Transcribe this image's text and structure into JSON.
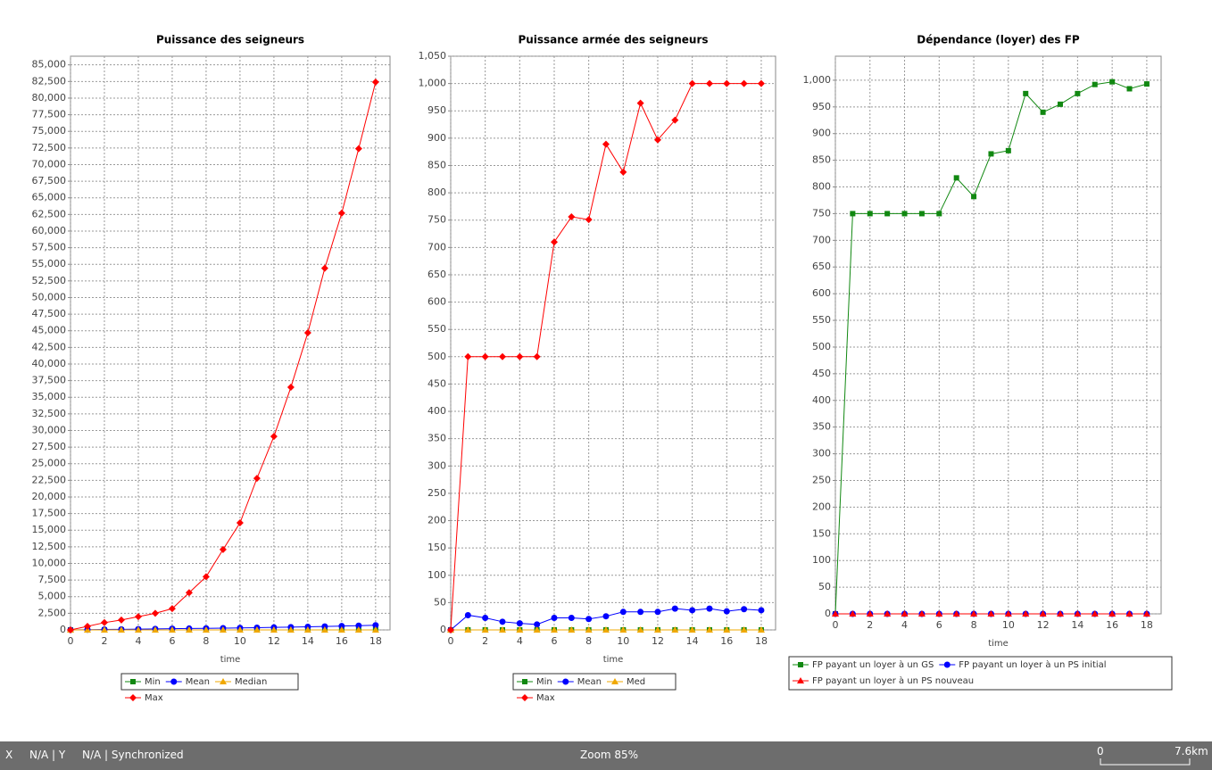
{
  "chart_data": [
    {
      "type": "line",
      "title": "Puissance des seigneurs",
      "xlabel": "time",
      "x": [
        0,
        1,
        2,
        3,
        4,
        5,
        6,
        7,
        8,
        9,
        10,
        11,
        12,
        13,
        14,
        15,
        16,
        17,
        18
      ],
      "xlim": [
        0,
        18.85
      ],
      "xticks": [
        0,
        2,
        4,
        6,
        8,
        10,
        12,
        14,
        16,
        18
      ],
      "ylim": [
        0,
        86300
      ],
      "yticks": [
        0,
        {
          "value": 2500,
          "label": "2,500"
        },
        {
          "value": 5000,
          "label": "5,000"
        },
        {
          "value": 7500,
          "label": "7,500"
        },
        {
          "value": 10000,
          "label": "10,000"
        },
        {
          "value": 12500,
          "label": "12,500"
        },
        {
          "value": 15000,
          "label": "15,000"
        },
        {
          "value": 17500,
          "label": "17,500"
        },
        {
          "value": 20000,
          "label": "20,000"
        },
        {
          "value": 22500,
          "label": "22,500"
        },
        {
          "value": 25000,
          "label": "25,000"
        },
        {
          "value": 27500,
          "label": "27,500"
        },
        {
          "value": 30000,
          "label": "30,000"
        },
        {
          "value": 32500,
          "label": "32,500"
        },
        {
          "value": 35000,
          "label": "35,000"
        },
        {
          "value": 37500,
          "label": "37,500"
        },
        {
          "value": 40000,
          "label": "40,000"
        },
        {
          "value": 42500,
          "label": "42,500"
        },
        {
          "value": 45000,
          "label": "45,000"
        },
        {
          "value": 47500,
          "label": "47,500"
        },
        {
          "value": 50000,
          "label": "50,000"
        },
        {
          "value": 52500,
          "label": "52,500"
        },
        {
          "value": 55000,
          "label": "55,000"
        },
        {
          "value": 57500,
          "label": "57,500"
        },
        {
          "value": 60000,
          "label": "60,000"
        },
        {
          "value": 62500,
          "label": "62,500"
        },
        {
          "value": 65000,
          "label": "65,000"
        },
        {
          "value": 67500,
          "label": "67,500"
        },
        {
          "value": 70000,
          "label": "70,000"
        },
        {
          "value": 72500,
          "label": "72,500"
        },
        {
          "value": 75000,
          "label": "75,000"
        },
        {
          "value": 77500,
          "label": "77,500"
        },
        {
          "value": 80000,
          "label": "80,000"
        },
        {
          "value": 82500,
          "label": "82,500"
        },
        {
          "value": 85000,
          "label": "85,000"
        }
      ],
      "grid": true,
      "series": [
        {
          "name": "Min",
          "color": "#118811",
          "marker": "square",
          "values": [
            0,
            0,
            0,
            0,
            0,
            0,
            0,
            0,
            0,
            0,
            0,
            0,
            0,
            0,
            0,
            0,
            0,
            0,
            0
          ]
        },
        {
          "name": "Mean",
          "color": "#0000ff",
          "marker": "circle",
          "values": [
            0,
            30,
            60,
            90,
            120,
            150,
            180,
            210,
            240,
            270,
            300,
            340,
            380,
            420,
            470,
            520,
            580,
            640,
            700
          ]
        },
        {
          "name": "Median",
          "color": "#f0a800",
          "marker": "triangle",
          "values": [
            0,
            0,
            0,
            0,
            0,
            0,
            0,
            0,
            0,
            0,
            0,
            0,
            0,
            0,
            0,
            0,
            0,
            0,
            0
          ]
        },
        {
          "name": "Max",
          "color": "#ff0000",
          "marker": "diamond",
          "values": [
            0,
            537,
            1100,
            1500,
            2000,
            2500,
            3200,
            5600,
            8000,
            12100,
            16100,
            22800,
            29100,
            36500,
            44700,
            54400,
            62700,
            72400,
            82400
          ]
        }
      ]
    },
    {
      "type": "line",
      "title": "Puissance armée des seigneurs",
      "xlabel": "time",
      "x": [
        0,
        1,
        2,
        3,
        4,
        5,
        6,
        7,
        8,
        9,
        10,
        11,
        12,
        13,
        14,
        15,
        16,
        17,
        18
      ],
      "xlim": [
        0,
        18.83
      ],
      "xticks": [
        0,
        2,
        4,
        6,
        8,
        10,
        12,
        14,
        16,
        18
      ],
      "ylim": [
        0,
        1050
      ],
      "yticks": [
        0,
        50,
        100,
        150,
        200,
        250,
        300,
        350,
        400,
        450,
        500,
        550,
        600,
        650,
        700,
        750,
        800,
        850,
        900,
        950,
        {
          "value": 1000,
          "label": "1,000"
        },
        {
          "value": 1050,
          "label": "1,050"
        }
      ],
      "grid": true,
      "series": [
        {
          "name": "Min",
          "color": "#118811",
          "marker": "square",
          "values": [
            0,
            0,
            0,
            0,
            0,
            0,
            0,
            0,
            0,
            0,
            0,
            0,
            0,
            0,
            0,
            0,
            0,
            0,
            0
          ]
        },
        {
          "name": "Mean",
          "color": "#0000ff",
          "marker": "circle",
          "values": [
            0,
            27,
            22,
            15,
            12,
            10,
            22,
            22,
            20,
            25,
            33,
            33,
            33,
            39,
            36,
            39,
            34,
            38,
            36
          ]
        },
        {
          "name": "Med",
          "color": "#f0a800",
          "marker": "triangle",
          "values": [
            0,
            0,
            0,
            0,
            0,
            0,
            0,
            0,
            0,
            0,
            0,
            0,
            0,
            0,
            0,
            0,
            0,
            0,
            0
          ]
        },
        {
          "name": "Max",
          "color": "#ff0000",
          "marker": "diamond",
          "values": [
            0,
            500,
            500,
            500,
            500,
            500,
            710,
            756,
            751,
            889,
            838,
            964,
            897,
            933,
            1000,
            1000,
            1000,
            1000,
            1000
          ]
        }
      ]
    },
    {
      "type": "line",
      "title": "Dépendance (loyer) des FP",
      "xlabel": "time",
      "x": [
        0,
        1,
        2,
        3,
        4,
        5,
        6,
        7,
        8,
        9,
        10,
        11,
        12,
        13,
        14,
        15,
        16,
        17,
        18
      ],
      "xlim": [
        0,
        18.83
      ],
      "xticks": [
        0,
        2,
        4,
        6,
        8,
        10,
        12,
        14,
        16,
        18
      ],
      "ylim": [
        0,
        1045
      ],
      "yticks": [
        0,
        50,
        100,
        150,
        200,
        250,
        300,
        350,
        400,
        450,
        500,
        550,
        600,
        650,
        700,
        750,
        800,
        850,
        900,
        950,
        {
          "value": 1000,
          "label": "1,000"
        }
      ],
      "grid": true,
      "series": [
        {
          "name": "FP payant un loyer à un GS",
          "color": "#118811",
          "marker": "square",
          "values": [
            0,
            750,
            750,
            750,
            750,
            750,
            750,
            817,
            782,
            862,
            868,
            975,
            940,
            955,
            975,
            992,
            997,
            984,
            993
          ]
        },
        {
          "name": "FP payant un loyer à un PS initial",
          "color": "#0000ff",
          "marker": "circle",
          "values": [
            0,
            0,
            0,
            0,
            0,
            0,
            0,
            0,
            0,
            0,
            0,
            0,
            0,
            0,
            0,
            0,
            0,
            0,
            0
          ]
        },
        {
          "name": "FP payant un loyer à un PS nouveau",
          "color": "#ff0000",
          "marker": "triangle",
          "values": [
            0,
            0,
            0,
            0,
            0,
            0,
            0,
            0,
            0,
            0,
            0,
            0,
            0,
            0,
            0,
            0,
            0,
            0,
            0
          ]
        }
      ]
    }
  ],
  "status_bar": {
    "x_label": "X",
    "x_value": "N/A | Y",
    "y_value": "N/A | Synchronized",
    "zoom": "Zoom 85%",
    "scale_start": "0",
    "scale_end": "7.6km"
  }
}
